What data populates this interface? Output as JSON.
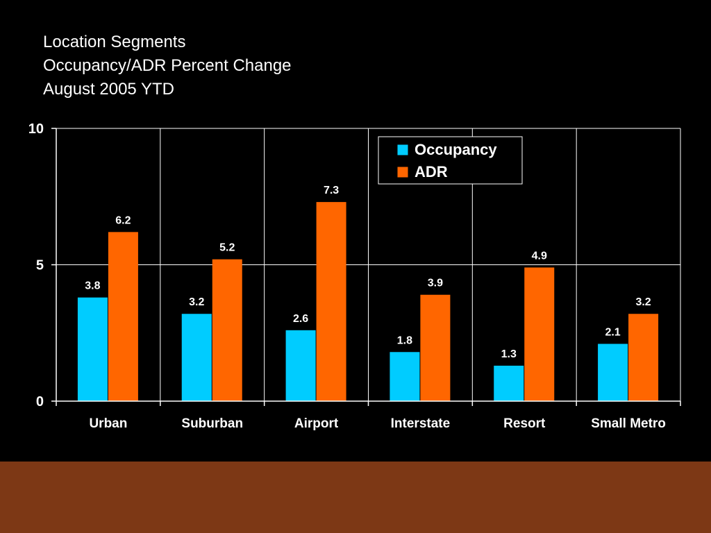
{
  "slide": {
    "title_lines": [
      "Location Segments",
      "Occupancy/ADR Percent Change",
      "August 2005 YTD"
    ],
    "background_color": "#000000",
    "footer_color": "#7d3815"
  },
  "chart_data": {
    "type": "bar",
    "categories": [
      "Urban",
      "Suburban",
      "Airport",
      "Interstate",
      "Resort",
      "Small Metro"
    ],
    "series": [
      {
        "name": "Occupancy",
        "values": [
          3.8,
          3.2,
          2.6,
          1.8,
          1.3,
          2.1
        ],
        "color": "#00ccff"
      },
      {
        "name": "ADR",
        "values": [
          6.2,
          5.2,
          7.3,
          3.9,
          4.9,
          3.2
        ],
        "color": "#ff6600"
      }
    ],
    "y_ticks": [
      "0",
      "5",
      "10"
    ],
    "ylim": [
      0,
      10
    ],
    "grid": true,
    "data_labels": true,
    "legend_position": "top-right"
  }
}
